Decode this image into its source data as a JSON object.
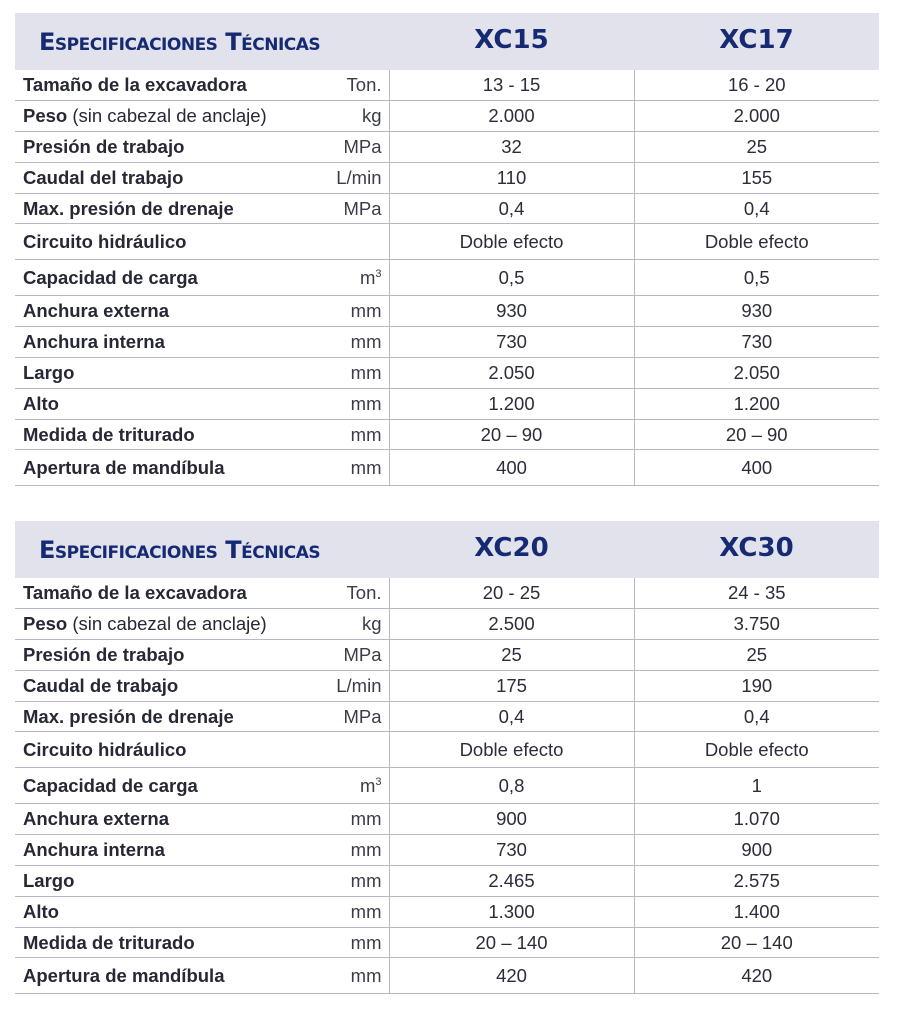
{
  "tables": [
    {
      "title": "Especificaciones Técnicas",
      "models": [
        "XC15",
        "XC17"
      ],
      "rows": [
        {
          "label": "Tamaño de la excavadora",
          "note": "",
          "unit": "Ton.",
          "values": [
            "13 - 15",
            "16 - 20"
          ]
        },
        {
          "label": "Peso",
          "note": " (sin cabezal de anclaje)",
          "unit": "kg",
          "values": [
            "2.000",
            "2.000"
          ]
        },
        {
          "label": "Presión de trabajo",
          "note": "",
          "unit": "MPa",
          "values": [
            "32",
            "25"
          ]
        },
        {
          "label": "Caudal del trabajo",
          "note": "",
          "unit": "L/min",
          "values": [
            "110",
            "155"
          ]
        },
        {
          "label": "Max. presión de drenaje",
          "note": "",
          "unit": "MPa",
          "values": [
            "0,4",
            "0,4"
          ]
        },
        {
          "label": "Circuito hidráulico",
          "note": "",
          "unit": "",
          "values": [
            "Doble efecto",
            "Doble efecto"
          ]
        },
        {
          "label": "Capacidad de carga",
          "note": "",
          "unit": "m",
          "unit_sup": "3",
          "values": [
            "0,5",
            "0,5"
          ]
        },
        {
          "label": "Anchura externa",
          "note": "",
          "unit": "mm",
          "values": [
            "930",
            "930"
          ]
        },
        {
          "label": "Anchura interna",
          "note": "",
          "unit": "mm",
          "values": [
            "730",
            "730"
          ]
        },
        {
          "label": "Largo",
          "note": "",
          "unit": "mm",
          "values": [
            "2.050",
            "2.050"
          ]
        },
        {
          "label": "Alto",
          "note": "",
          "unit": "mm",
          "values": [
            "1.200",
            "1.200"
          ]
        },
        {
          "label": "Medida de triturado",
          "note": "",
          "unit": "mm",
          "values": [
            "20 – 90",
            "20 – 90"
          ]
        },
        {
          "label": "Apertura de mandíbula",
          "note": "",
          "unit": "mm",
          "values": [
            "400",
            "400"
          ]
        }
      ]
    },
    {
      "title": "Especificaciones Técnicas",
      "models": [
        "XC20",
        "XC30"
      ],
      "rows": [
        {
          "label": "Tamaño de la excavadora",
          "note": "",
          "unit": "Ton.",
          "values": [
            "20 - 25",
            "24 - 35"
          ]
        },
        {
          "label": "Peso",
          "note": " (sin cabezal de anclaje)",
          "unit": "kg",
          "values": [
            "2.500",
            "3.750"
          ]
        },
        {
          "label": "Presión de trabajo",
          "note": "",
          "unit": "MPa",
          "values": [
            "25",
            "25"
          ]
        },
        {
          "label": "Caudal de trabajo",
          "note": "",
          "unit": "L/min",
          "values": [
            "175",
            "190"
          ]
        },
        {
          "label": "Max. presión de drenaje",
          "note": "",
          "unit": "MPa",
          "values": [
            "0,4",
            "0,4"
          ]
        },
        {
          "label": "Circuito hidráulico",
          "note": "",
          "unit": "",
          "values": [
            "Doble efecto",
            "Doble efecto"
          ]
        },
        {
          "label": "Capacidad de carga",
          "note": "",
          "unit": "m",
          "unit_sup": "3",
          "values": [
            "0,8",
            "1"
          ]
        },
        {
          "label": "Anchura externa",
          "note": "",
          "unit": "mm",
          "values": [
            "900",
            "1.070"
          ]
        },
        {
          "label": "Anchura interna",
          "note": "",
          "unit": "mm",
          "values": [
            "730",
            "900"
          ]
        },
        {
          "label": "Largo",
          "note": "",
          "unit": "mm",
          "values": [
            "2.465",
            "2.575"
          ]
        },
        {
          "label": "Alto",
          "note": "",
          "unit": "mm",
          "values": [
            "1.300",
            "1.400"
          ]
        },
        {
          "label": "Medida de triturado",
          "note": "",
          "unit": "mm",
          "values": [
            "20 – 140",
            "20 – 140"
          ]
        },
        {
          "label": "Apertura de mandíbula",
          "note": "",
          "unit": "mm",
          "values": [
            "420",
            "420"
          ]
        }
      ]
    }
  ],
  "colors": {
    "header_bg": "#e1e2ec",
    "title": "#162a73",
    "rule": "#b7b9c6"
  }
}
